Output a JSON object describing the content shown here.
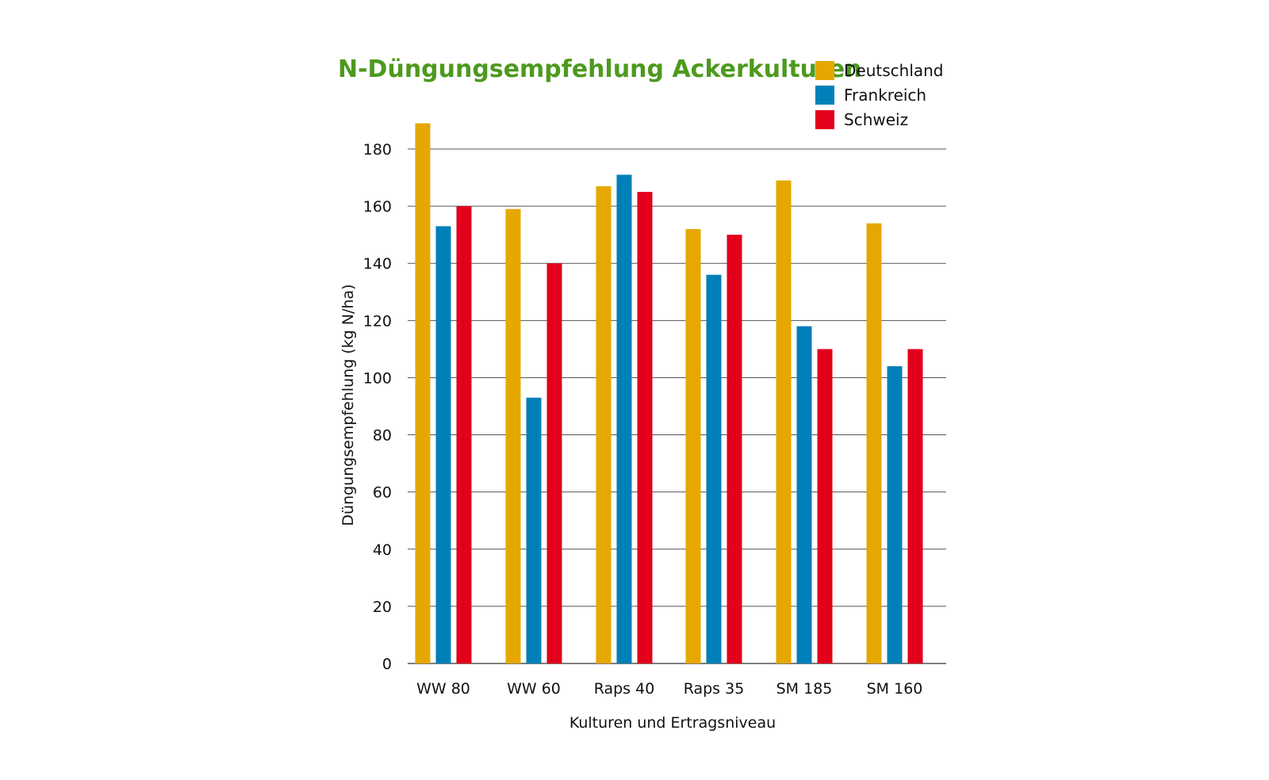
{
  "chart_data": {
    "type": "bar",
    "title": "N-Düngungsempfehlung Ackerkulturen",
    "xlabel": "Kulturen und Ertragsniveau",
    "ylabel": "Düngungsempfehlung (kg N/ha)",
    "ylim": [
      0,
      190
    ],
    "yticks": [
      0,
      20,
      40,
      60,
      80,
      100,
      120,
      140,
      160,
      180
    ],
    "grid": true,
    "legend_position": "top-right",
    "categories": [
      "WW 80",
      "WW 60",
      "Raps 40",
      "Raps 35",
      "SM 185",
      "SM 160"
    ],
    "series": [
      {
        "name": "Deutschland",
        "color": "#e6a700",
        "values": [
          189,
          159,
          167,
          152,
          169,
          154
        ]
      },
      {
        "name": "Frankreich",
        "color": "#0080b8",
        "values": [
          153,
          93,
          171,
          136,
          118,
          104
        ]
      },
      {
        "name": "Schweiz",
        "color": "#e3001b",
        "values": [
          160,
          140,
          165,
          150,
          110,
          110
        ]
      }
    ]
  },
  "colors": {
    "title": "#4d9a1e",
    "grid": "#555555",
    "text": "#111111"
  }
}
